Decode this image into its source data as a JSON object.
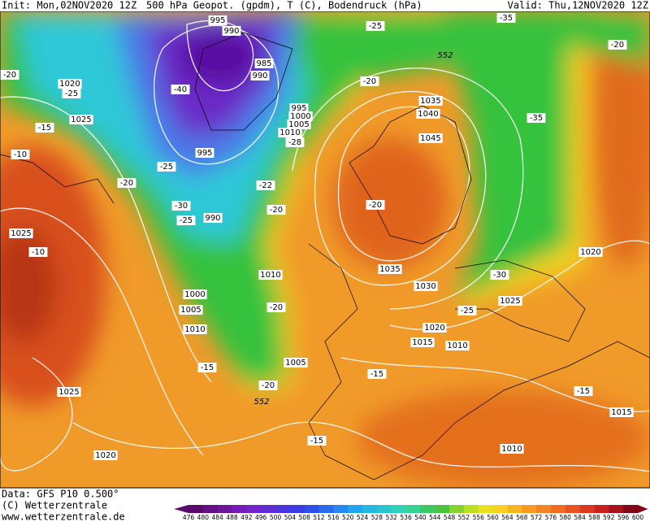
{
  "header": {
    "init": "Init: Mon,02NOV2020 12Z",
    "title": "500 hPa Geopot. (gpdm), T (C), Bodendruck (hPa)",
    "valid": "Valid: Thu,12NOV2020 12Z"
  },
  "map": {
    "isobar_labels": [
      "995",
      "990",
      "985",
      "990",
      "995",
      "1000",
      "1005",
      "1010",
      "995",
      "990",
      "1020",
      "1025",
      "1025",
      "1000",
      "1005",
      "1010",
      "1010",
      "1005",
      "1035",
      "1040",
      "1045",
      "1035",
      "1030",
      "1020",
      "1015",
      "1010",
      "1025",
      "1020",
      "1025",
      "1020",
      "1010",
      "1015"
    ],
    "temperature_labels": [
      "-35",
      "-20",
      "-20",
      "-25",
      "-40",
      "-15",
      "-10",
      "-20",
      "-25",
      "-30",
      "-25",
      "-10",
      "-28",
      "-25",
      "-20",
      "-35",
      "-22",
      "-20",
      "-20",
      "-20",
      "-15",
      "-20",
      "-15",
      "-30",
      "-25",
      "-15",
      "-15"
    ],
    "height_labels": [
      "552",
      "552"
    ]
  },
  "colorbar": {
    "ticks": [
      476,
      480,
      484,
      488,
      492,
      496,
      500,
      504,
      508,
      512,
      516,
      520,
      524,
      528,
      532,
      536,
      540,
      544,
      548,
      552,
      556,
      560,
      564,
      568,
      572,
      576,
      580,
      584,
      588,
      592,
      596,
      600
    ]
  },
  "footer": {
    "data": "Data: GFS P10 0.500°",
    "copyright": "(C) Wetterzentrale",
    "url": "www.wetterzentrale.de"
  }
}
